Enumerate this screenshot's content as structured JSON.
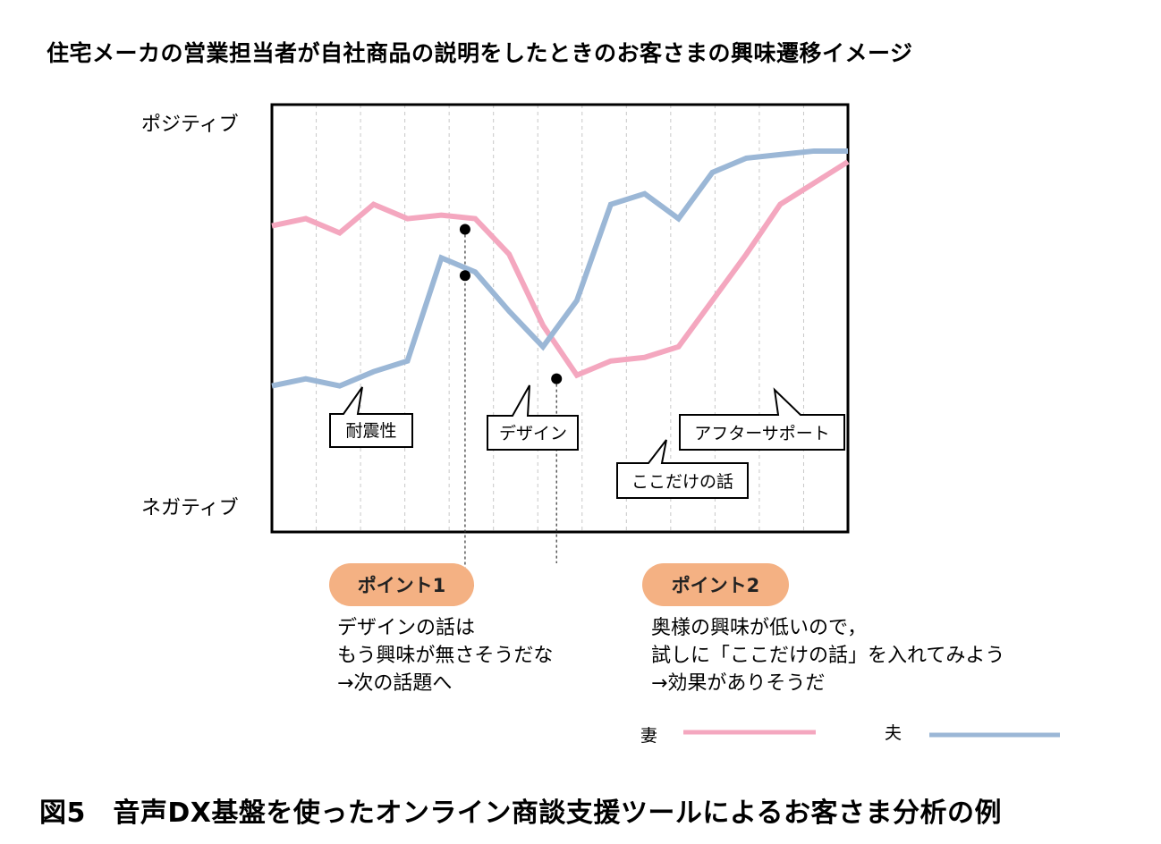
{
  "title": "住宅メーカの営業担当者が自社商品の説明をしたときのお客さまの興味遷移イメージ",
  "figure_caption": "図5　音声DX基盤を使ったオンライン商談支援ツールによるお客さま分析の例",
  "y_top_label": "ポジティブ",
  "y_bottom_label": "ネガティブ",
  "callouts": [
    {
      "label": "耐震性"
    },
    {
      "label": "デザイン"
    },
    {
      "label": "ここだけの話"
    },
    {
      "label": "アフターサポート"
    }
  ],
  "points": [
    {
      "label": "ポイント1",
      "note_lines": [
        "デザインの話は",
        "もう興味が無さそうだな",
        "→次の話題へ"
      ]
    },
    {
      "label": "ポイント2",
      "note_lines": [
        "奥様の興味が低いので，",
        "試しに「ここだけの話」を入れてみよう",
        "→効果がありそうだ"
      ]
    }
  ],
  "colors": {
    "wife": "#f4a7bf",
    "husband": "#9bb7d6",
    "point_pill": "#f4b183"
  },
  "chart_data": {
    "type": "line",
    "title": "住宅メーカの営業担当者が自社商品の説明をしたときのお客さまの興味遷移イメージ",
    "ylabel_top": "ポジティブ",
    "ylabel_bottom": "ネガティブ",
    "ylim": [
      0,
      100
    ],
    "grid": "vertical-dashed",
    "legend": "bottom-right",
    "x": [
      0,
      1,
      2,
      3,
      4,
      5,
      6,
      7,
      8,
      9,
      10,
      11,
      12,
      13,
      14,
      15,
      16,
      17
    ],
    "series": [
      {
        "name": "妻",
        "color": "#f4a7bf",
        "values": [
          76,
          78,
          74,
          82,
          78,
          79,
          78,
          68,
          48,
          34,
          38,
          39,
          42,
          55,
          68,
          82,
          88,
          94
        ]
      },
      {
        "name": "夫",
        "color": "#9bb7d6",
        "values": [
          31,
          33,
          31,
          35,
          38,
          67,
          63,
          52,
          42,
          55,
          82,
          85,
          78,
          91,
          95,
          96,
          97,
          97
        ]
      }
    ],
    "markers": [
      {
        "series": "妻",
        "x": 5.7,
        "y": 75
      },
      {
        "series": "夫",
        "x": 5.7,
        "y": 62
      },
      {
        "series": "妻",
        "x": 8.4,
        "y": 33
      }
    ]
  }
}
